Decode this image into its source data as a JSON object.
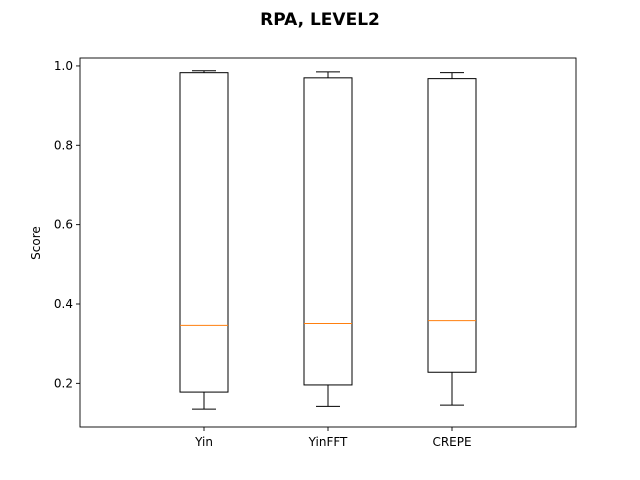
{
  "chart_data": {
    "type": "box",
    "title": "RPA, LEVEL2",
    "xlabel": "",
    "ylabel": "Score",
    "ylim": [
      0.09,
      1.02
    ],
    "yticks": [
      0.2,
      0.4,
      0.6,
      0.8,
      1.0
    ],
    "ytick_labels": [
      "0.2",
      "0.4",
      "0.6",
      "0.8",
      "1.0"
    ],
    "grid": false,
    "categories": [
      "Yin",
      "YinFFT",
      "CREPE"
    ],
    "boxes": [
      {
        "name": "Yin",
        "whisker_low": 0.135,
        "q1": 0.178,
        "median": 0.346,
        "q3": 0.983,
        "whisker_high": 0.988
      },
      {
        "name": "YinFFT",
        "whisker_low": 0.142,
        "q1": 0.196,
        "median": 0.351,
        "q3": 0.97,
        "whisker_high": 0.985
      },
      {
        "name": "CREPE",
        "whisker_low": 0.145,
        "q1": 0.228,
        "median": 0.358,
        "q3": 0.968,
        "whisker_high": 0.983
      }
    ],
    "colors": {
      "box": "#000000",
      "median": "#ff7f0e"
    }
  }
}
